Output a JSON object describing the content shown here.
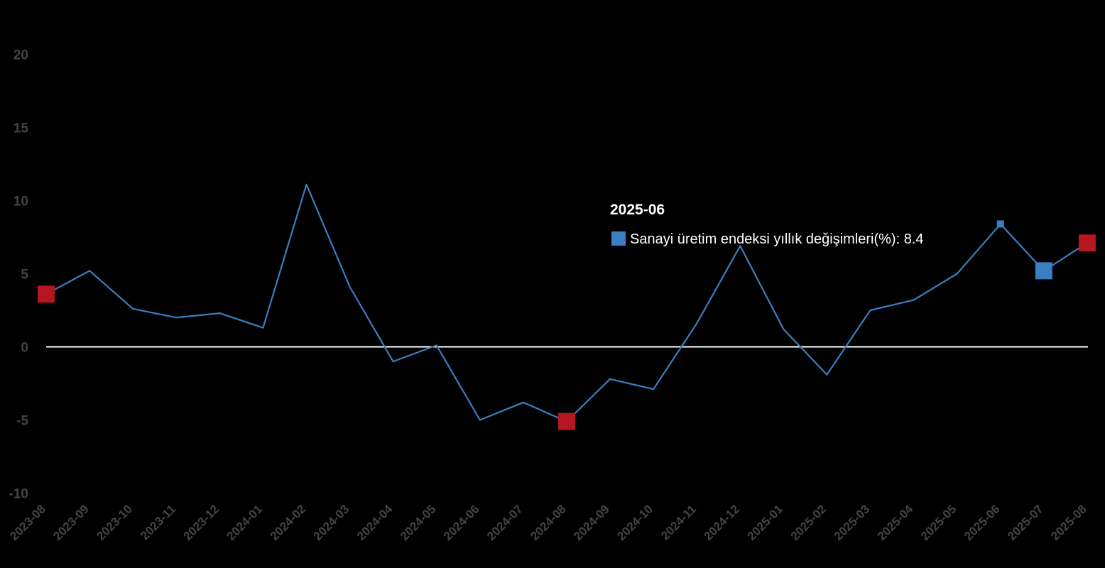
{
  "chart_data": {
    "type": "line",
    "title": "",
    "xlabel": "",
    "ylabel": "",
    "ylim": [
      -10,
      20
    ],
    "yticks": [
      -10,
      -5,
      0,
      5,
      10,
      15,
      20
    ],
    "grid": false,
    "zero_line": true,
    "categories": [
      "2023-08",
      "2023-09",
      "2023-10",
      "2023-11",
      "2023-12",
      "2024-01",
      "2024-02",
      "2024-03",
      "2024-04",
      "2024-05",
      "2024-06",
      "2024-07",
      "2024-08",
      "2024-09",
      "2024-10",
      "2024-11",
      "2024-12",
      "2025-01",
      "2025-02",
      "2025-03",
      "2025-04",
      "2025-05",
      "2025-06",
      "2025-07",
      "2025-08"
    ],
    "series": [
      {
        "name": "Sanayi üretim endeksi yıllık değişimleri(%)",
        "color": "#3a7fc1",
        "values": [
          3.6,
          5.2,
          2.6,
          2.0,
          2.3,
          1.3,
          11.1,
          4.1,
          -1.0,
          0.1,
          -5.0,
          -3.8,
          -5.1,
          -2.2,
          -2.9,
          1.6,
          6.9,
          1.2,
          -1.9,
          2.5,
          3.2,
          5.0,
          8.4,
          5.2,
          7.1
        ]
      }
    ],
    "highlighted_points": [
      {
        "x": "2023-08",
        "y": 3.6,
        "color": "#b5161f"
      },
      {
        "x": "2024-08",
        "y": -5.1,
        "color": "#b5161f"
      },
      {
        "x": "2025-07",
        "y": 5.2,
        "color": "#3a7fc1"
      },
      {
        "x": "2025-08",
        "y": 7.1,
        "color": "#b5161f"
      }
    ],
    "tooltip": {
      "title": "2025-06",
      "series_name": "Sanayi üretim endeksi yıllık değişimleri(%)",
      "value": "8.4",
      "color": "#3a7fc1"
    }
  }
}
